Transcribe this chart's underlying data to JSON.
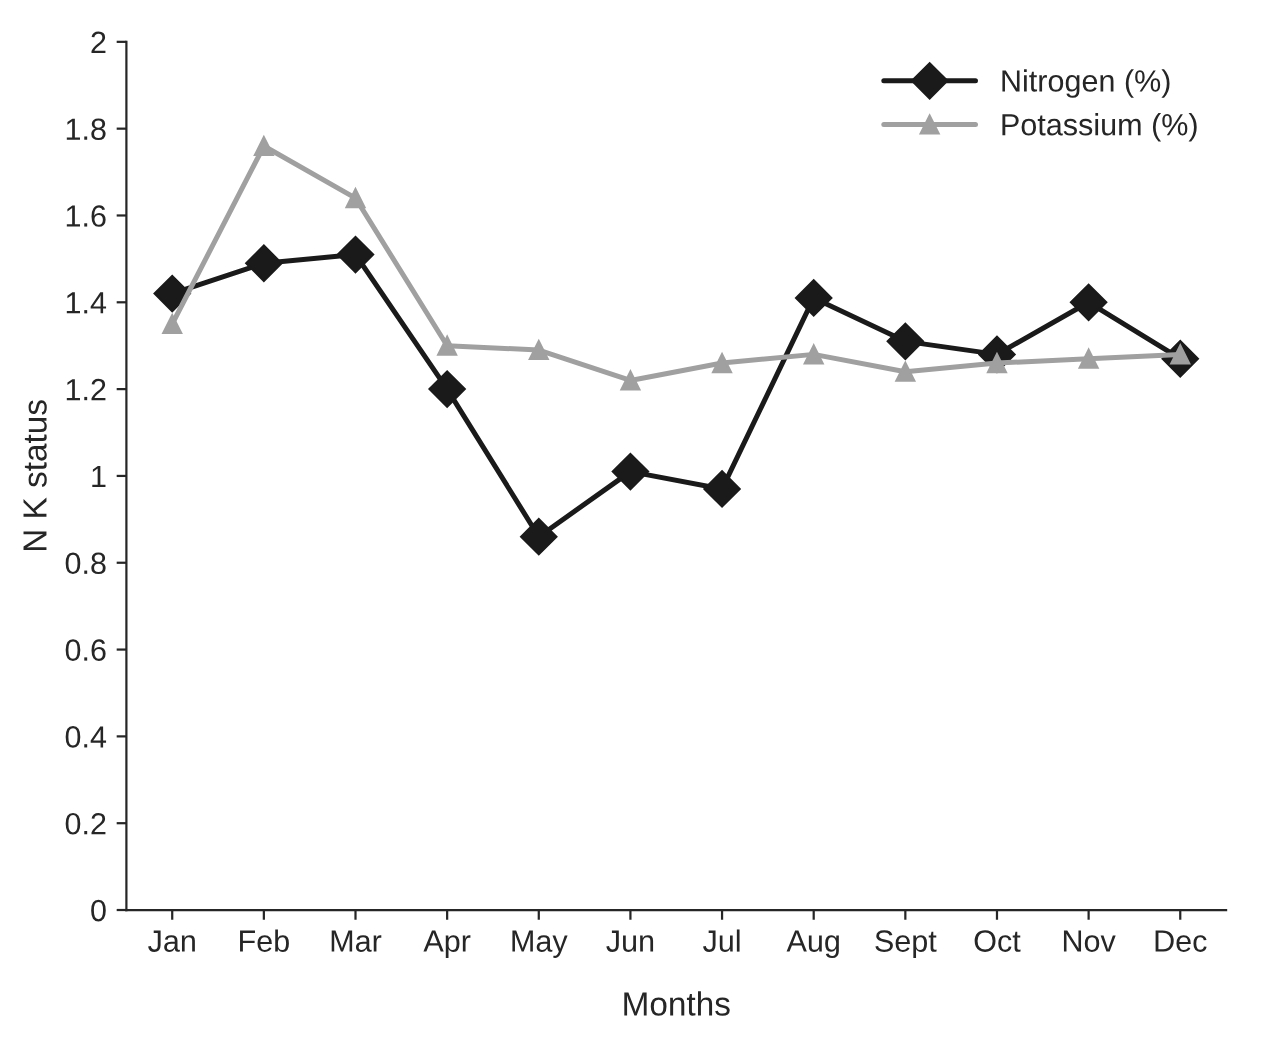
{
  "chart_data": {
    "type": "line",
    "xlabel": "Months",
    "ylabel": "N K status",
    "categories": [
      "Jan",
      "Feb",
      "Mar",
      "Apr",
      "May",
      "Jun",
      "Jul",
      "Aug",
      "Sept",
      "Oct",
      "Nov",
      "Dec"
    ],
    "series": [
      {
        "name": "Nitrogen (%)",
        "color": "#1a1a1a",
        "marker": "diamond",
        "values": [
          1.42,
          1.49,
          1.51,
          1.2,
          0.86,
          1.01,
          0.97,
          1.41,
          1.31,
          1.28,
          1.4,
          1.27
        ]
      },
      {
        "name": "Potassium (%)",
        "color": "#a0a0a0",
        "marker": "triangle",
        "values": [
          1.35,
          1.76,
          1.64,
          1.3,
          1.29,
          1.22,
          1.26,
          1.28,
          1.24,
          1.26,
          1.27,
          1.28
        ]
      }
    ],
    "ylim": [
      0,
      2
    ],
    "yticks": [
      0,
      0.2,
      0.4,
      0.6,
      0.8,
      1,
      1.2,
      1.4,
      1.6,
      1.8,
      2
    ],
    "legend": "top right",
    "grid": false,
    "line_style": "solid"
  }
}
